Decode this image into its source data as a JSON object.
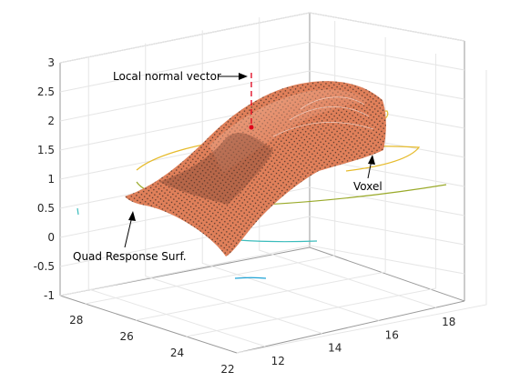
{
  "chart_data": {
    "type": "surface3d",
    "title": "",
    "z_axis": {
      "ticks": [
        "3",
        "2.5",
        "2",
        "1.5",
        "1",
        "0.5",
        "0",
        "-0.5",
        "-1"
      ],
      "range": [
        -1,
        3
      ]
    },
    "y_axis_left": {
      "ticks": [
        "28",
        "26",
        "24",
        "22"
      ],
      "range": [
        22,
        29
      ]
    },
    "x_axis_right": {
      "ticks": [
        "12",
        "14",
        "16",
        "18"
      ],
      "range": [
        11,
        19
      ]
    },
    "grid": true,
    "surface": {
      "name": "Quad Response Surf.",
      "peak_z": 2.4,
      "corner_low_z": -0.2,
      "colors": {
        "face": "#e0805a",
        "mesh": "#000000",
        "highlight": "#f6c2a8"
      }
    },
    "contours": [
      {
        "level": 2.0,
        "color": "#e3c23c"
      },
      {
        "level": 1.5,
        "color": "#e6bb2c"
      },
      {
        "level": 1.0,
        "color": "#9aaa2a"
      },
      {
        "level": 0.0,
        "color": "#3bbcbc"
      },
      {
        "level": -0.7,
        "color": "#1fa3d6"
      }
    ],
    "normal_vector_color": "#e0001a",
    "annotations": [
      {
        "text": "Local normal vector"
      },
      {
        "text": "Voxel"
      },
      {
        "text": "Quad Response Surf."
      }
    ]
  }
}
